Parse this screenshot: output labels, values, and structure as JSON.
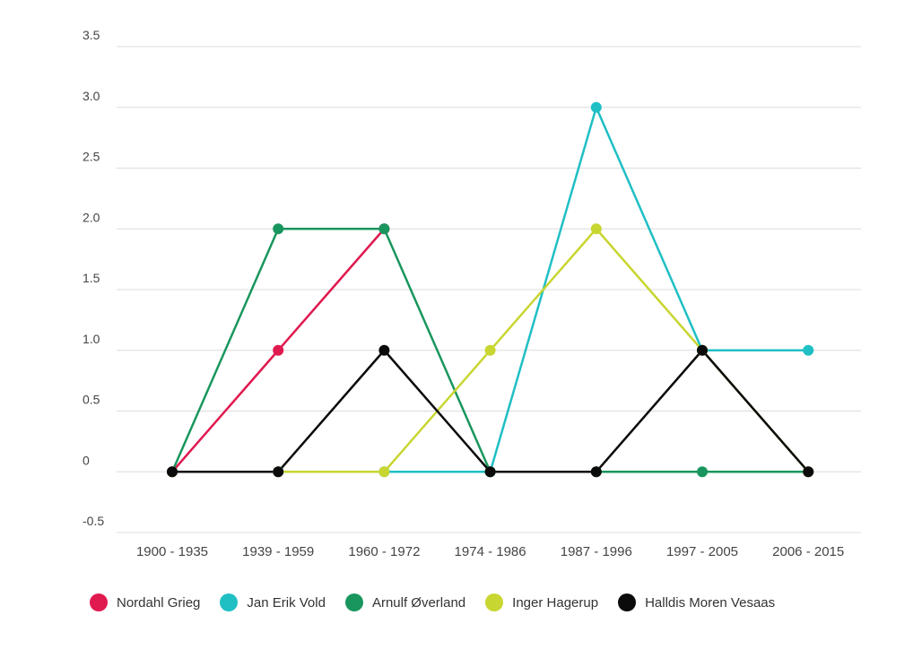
{
  "chart_data": {
    "type": "line",
    "categories": [
      "1900 - 1935",
      "1939 - 1959",
      "1960 - 1972",
      "1974 - 1986",
      "1987 - 1996",
      "1997 - 2005",
      "2006 - 2015"
    ],
    "ylim": [
      -0.5,
      3.5
    ],
    "yticks": [
      {
        "value": -0.5,
        "label": "-0.5"
      },
      {
        "value": 0,
        "label": "0"
      },
      {
        "value": 0.5,
        "label": "0.5"
      },
      {
        "value": 1.0,
        "label": "1.0"
      },
      {
        "value": 1.5,
        "label": "1.5"
      },
      {
        "value": 2.0,
        "label": "2.0"
      },
      {
        "value": 2.5,
        "label": "2.5"
      },
      {
        "value": 3.0,
        "label": "3.0"
      },
      {
        "value": 3.5,
        "label": "3.5"
      }
    ],
    "grid": true,
    "legend_position": "bottom",
    "series": [
      {
        "name": "Nordahl Grieg",
        "color": "#e0194f",
        "values": [
          0,
          1,
          2,
          null,
          null,
          null,
          null
        ]
      },
      {
        "name": "Jan Erik Vold",
        "color": "#1fbfc4",
        "values": [
          0,
          0,
          0,
          0,
          3,
          1,
          1
        ]
      },
      {
        "name": "Arnulf Øverland",
        "color": "#19965e",
        "values": [
          0,
          2,
          2,
          0,
          0,
          0,
          0
        ]
      },
      {
        "name": "Inger Hagerup",
        "color": "#c8d631",
        "values": [
          0,
          0,
          0,
          1,
          2,
          1,
          0
        ]
      },
      {
        "name": "Halldis Moren Vesaas",
        "color": "#0b0b0b",
        "values": [
          0,
          0,
          1,
          0,
          0,
          1,
          0
        ]
      }
    ]
  }
}
